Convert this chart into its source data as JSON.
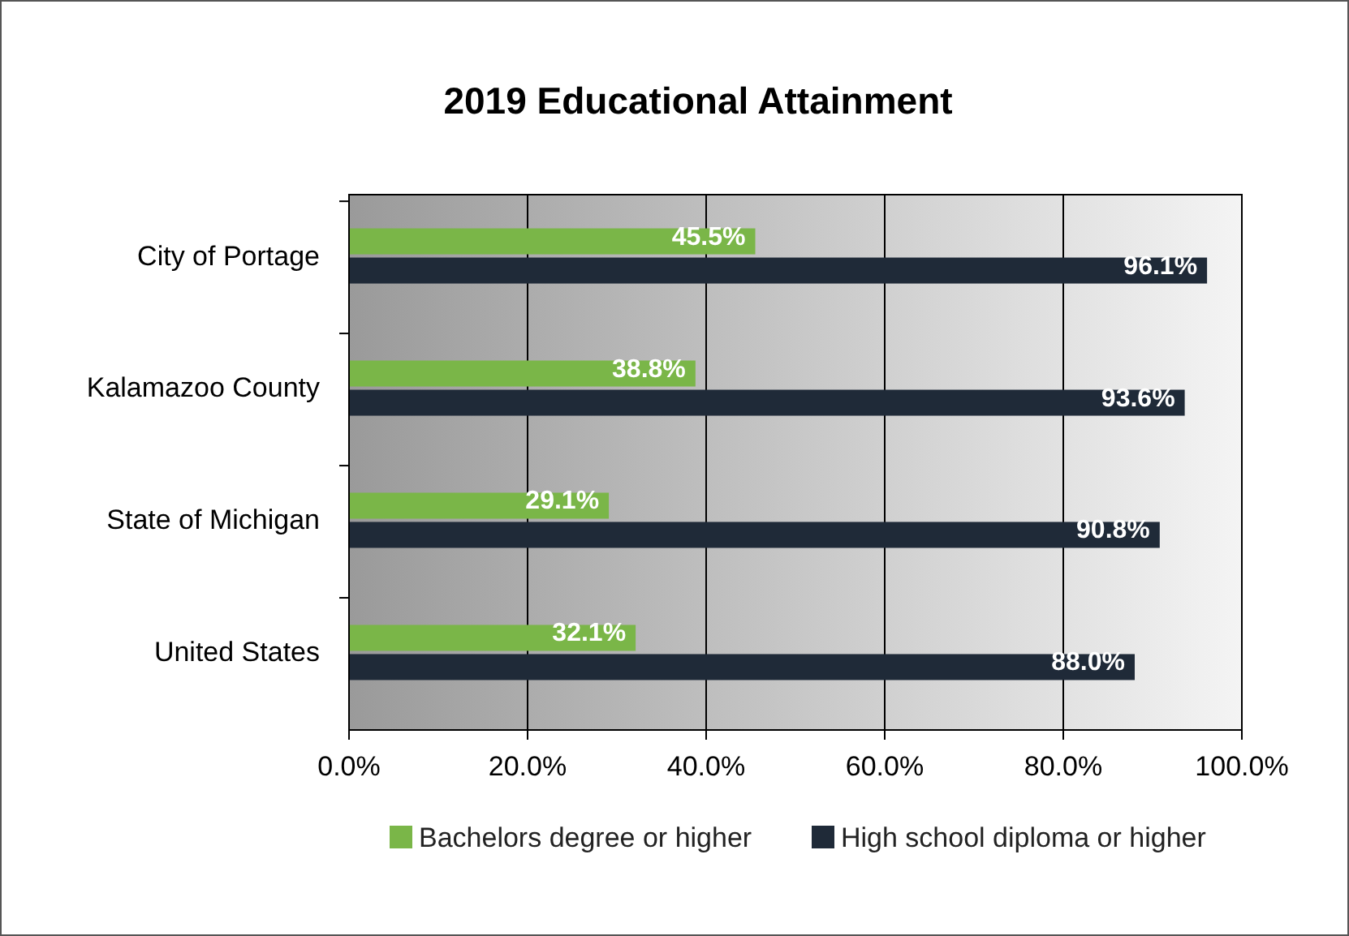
{
  "chart_data": {
    "type": "bar",
    "orientation": "horizontal",
    "title": "2019 Educational Attainment",
    "categories": [
      "City of Portage",
      "Kalamazoo County",
      "State of Michigan",
      "United States"
    ],
    "series": [
      {
        "name": "Bachelors degree or higher",
        "color": "#7ab648",
        "values": [
          45.5,
          38.8,
          29.1,
          32.1
        ],
        "value_labels": [
          "45.5%",
          "38.8%",
          "29.1%",
          "32.1%"
        ]
      },
      {
        "name": "High school diploma or higher",
        "color": "#1f2a38",
        "values": [
          96.1,
          93.6,
          90.8,
          88.0
        ],
        "value_labels": [
          "96.1%",
          "93.6%",
          "90.8%",
          "88.0%"
        ]
      }
    ],
    "xlim": [
      0,
      100
    ],
    "xticks": [
      {
        "value": 0,
        "label": "0.0%"
      },
      {
        "value": 20,
        "label": "20.0%"
      },
      {
        "value": 40,
        "label": "40.0%"
      },
      {
        "value": 60,
        "label": "60.0%"
      },
      {
        "value": 80,
        "label": "80.0%"
      },
      {
        "value": 100,
        "label": "100.0%"
      }
    ],
    "grid": "x",
    "legend": "bottom"
  }
}
